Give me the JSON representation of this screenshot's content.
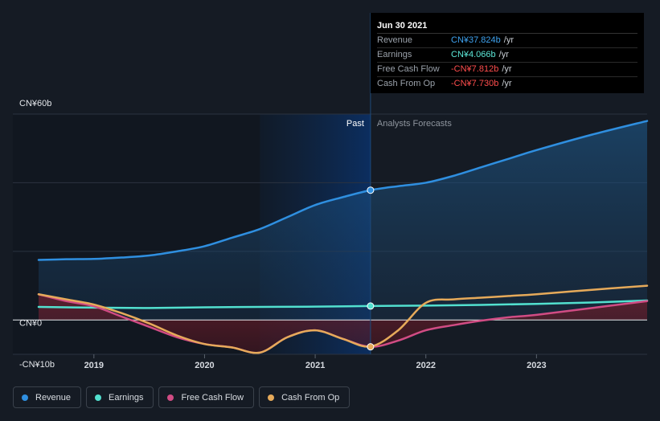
{
  "tooltip": {
    "date": "Jun 30 2021",
    "rows": [
      {
        "label": "Revenue",
        "value": "CN¥37.824b",
        "unit": "/yr",
        "color": "#3fa3f0"
      },
      {
        "label": "Earnings",
        "value": "CN¥4.066b",
        "unit": "/yr",
        "color": "#5ce8d8"
      },
      {
        "label": "Free Cash Flow",
        "value": "-CN¥7.812b",
        "unit": "/yr",
        "color": "#ff4d4d"
      },
      {
        "label": "Cash From Op",
        "value": "-CN¥7.730b",
        "unit": "/yr",
        "color": "#ff4d4d"
      }
    ]
  },
  "regions": {
    "past": "Past",
    "forecast": "Analysts Forecasts"
  },
  "legend": [
    {
      "label": "Revenue",
      "color": "#2f8fe0"
    },
    {
      "label": "Earnings",
      "color": "#52e0cf"
    },
    {
      "label": "Free Cash Flow",
      "color": "#d14c84"
    },
    {
      "label": "Cash From Op",
      "color": "#e6aa5a"
    }
  ],
  "chart_data": {
    "type": "line",
    "y_axis": {
      "labels": [
        "CN¥60b",
        "CN¥0",
        "-CN¥10b"
      ],
      "ylim": [
        -10,
        60
      ],
      "unit": "CN¥ billions"
    },
    "x_axis": {
      "ticks": [
        "2019",
        "2020",
        "2021",
        "2022",
        "2023"
      ]
    },
    "past_end": 2021.5,
    "highlight_start": 2020.5,
    "grid": true,
    "series": [
      {
        "name": "Revenue",
        "color": "#2f8fe0",
        "area": true,
        "x": [
          2018.5,
          2018.75,
          2019.0,
          2019.25,
          2019.5,
          2019.75,
          2020.0,
          2020.25,
          2020.5,
          2020.75,
          2021.0,
          2021.25,
          2021.5,
          2021.75,
          2022.0,
          2022.25,
          2022.5,
          2022.75,
          2023.0,
          2023.5,
          2024.0
        ],
        "values": [
          17.5,
          17.7,
          17.8,
          18.2,
          18.8,
          20.0,
          21.5,
          24.0,
          26.5,
          30.0,
          33.5,
          35.8,
          37.824,
          39.0,
          40.0,
          42.0,
          44.5,
          47.0,
          49.5,
          54.0,
          58.0
        ]
      },
      {
        "name": "Earnings",
        "color": "#52e0cf",
        "area": false,
        "x": [
          2018.5,
          2019.0,
          2019.5,
          2020.0,
          2020.5,
          2021.0,
          2021.5,
          2022.0,
          2022.5,
          2023.0,
          2023.5,
          2024.0
        ],
        "values": [
          3.8,
          3.6,
          3.5,
          3.7,
          3.8,
          3.9,
          4.066,
          4.2,
          4.4,
          4.7,
          5.1,
          5.7
        ]
      },
      {
        "name": "Free Cash Flow",
        "color": "#d14c84",
        "area": true,
        "x": [
          2018.5,
          2018.75,
          2019.0,
          2019.25,
          2019.5,
          2019.75,
          2020.0,
          2020.25,
          2020.5,
          2020.75,
          2021.0,
          2021.25,
          2021.5,
          2021.75,
          2022.0,
          2022.25,
          2022.5,
          2022.75,
          2023.0,
          2023.5,
          2024.0
        ],
        "values": [
          7.5,
          5.5,
          4.0,
          1.0,
          -2.0,
          -5.0,
          -7.0,
          -8.0,
          -9.5,
          -5.0,
          -3.0,
          -5.5,
          -7.812,
          -6.0,
          -3.0,
          -1.5,
          -0.2,
          0.8,
          1.5,
          3.5,
          5.5
        ]
      },
      {
        "name": "Cash From Op",
        "color": "#e6aa5a",
        "area": false,
        "x": [
          2018.5,
          2018.75,
          2019.0,
          2019.25,
          2019.5,
          2019.75,
          2020.0,
          2020.25,
          2020.5,
          2020.75,
          2021.0,
          2021.25,
          2021.5,
          2021.75,
          2022.0,
          2022.25,
          2022.5,
          2022.75,
          2023.0,
          2023.5,
          2024.0
        ],
        "values": [
          7.5,
          6.0,
          4.5,
          2.0,
          -1.0,
          -4.5,
          -7.0,
          -8.0,
          -9.5,
          -5.0,
          -3.0,
          -5.5,
          -7.73,
          -3.0,
          5.0,
          6.0,
          6.5,
          7.0,
          7.5,
          8.8,
          10.0
        ]
      }
    ]
  }
}
